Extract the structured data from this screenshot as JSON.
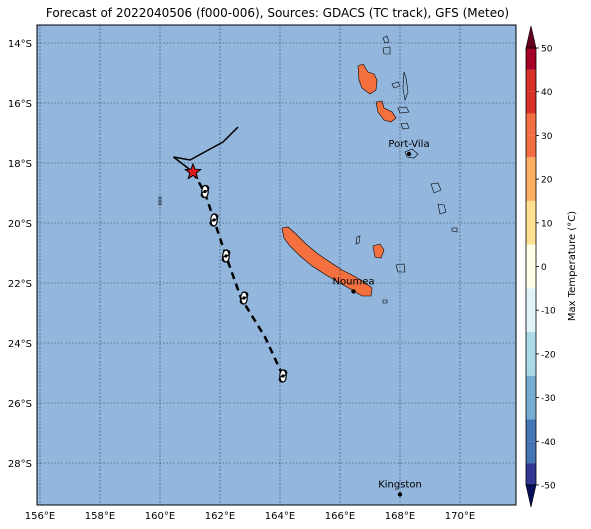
{
  "title": "Forecast of 2022040506 (f000-006), Sources: GDACS (TC track), GFS (Meteo)",
  "map": {
    "lon_labels": [
      "156°E",
      "158°E",
      "160°E",
      "162°E",
      "164°E",
      "166°E",
      "168°E",
      "170°E"
    ],
    "lat_labels": [
      "14°S",
      "16°S",
      "18°S",
      "20°S",
      "22°S",
      "24°S",
      "26°S",
      "28°S"
    ],
    "ocean_color": "#92b6dc",
    "land_warm_color": "#f4703f",
    "land_hot_color": "#d93a2f"
  },
  "places": [
    {
      "name": "Port-Vila",
      "lon": 168.3,
      "lat": -17.7
    },
    {
      "name": "Noumea",
      "lon": 166.45,
      "lat": -22.28
    },
    {
      "name": "Kingston",
      "lon": 168.0,
      "lat": -29.05
    }
  ],
  "track": {
    "observed": [
      [
        162.6,
        -16.8
      ],
      [
        162.1,
        -17.3
      ],
      [
        161.0,
        -17.9
      ],
      [
        160.45,
        -17.8
      ],
      [
        161.1,
        -18.3
      ]
    ],
    "current_position": [
      161.1,
      -18.3
    ],
    "forecast": [
      [
        161.1,
        -18.3
      ],
      [
        161.5,
        -19.0
      ],
      [
        161.8,
        -19.9
      ],
      [
        162.2,
        -21.1
      ],
      [
        162.7,
        -22.5
      ],
      [
        163.5,
        -23.8
      ],
      [
        164.1,
        -25.1
      ]
    ],
    "storm_symbols": [
      [
        161.5,
        -18.95
      ],
      [
        161.8,
        -19.9
      ],
      [
        162.2,
        -21.1
      ],
      [
        162.8,
        -22.5
      ],
      [
        164.1,
        -25.1
      ]
    ]
  },
  "colorbar": {
    "label": "Max Temperature (°C)",
    "tick_labels": [
      "50",
      "40",
      "30",
      "20",
      "10",
      "0",
      "-10",
      "-20",
      "-30",
      "-40",
      "-50"
    ]
  }
}
